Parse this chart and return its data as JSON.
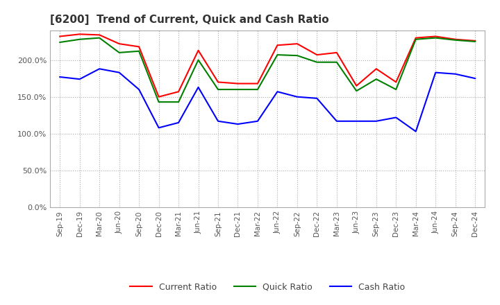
{
  "title": "[6200]  Trend of Current, Quick and Cash Ratio",
  "x_labels": [
    "Sep-19",
    "Dec-19",
    "Mar-20",
    "Jun-20",
    "Sep-20",
    "Dec-20",
    "Mar-21",
    "Jun-21",
    "Sep-21",
    "Dec-21",
    "Mar-22",
    "Jun-22",
    "Sep-22",
    "Dec-22",
    "Mar-23",
    "Jun-23",
    "Sep-23",
    "Dec-23",
    "Mar-24",
    "Jun-24",
    "Sep-24",
    "Dec-24"
  ],
  "current_ratio": [
    232,
    235,
    234,
    222,
    218,
    150,
    157,
    213,
    170,
    168,
    168,
    220,
    222,
    207,
    210,
    165,
    188,
    170,
    230,
    232,
    228,
    226
  ],
  "quick_ratio": [
    224,
    228,
    230,
    210,
    212,
    143,
    143,
    200,
    160,
    160,
    160,
    207,
    206,
    197,
    197,
    158,
    174,
    160,
    228,
    230,
    227,
    225
  ],
  "cash_ratio": [
    177,
    174,
    188,
    183,
    160,
    108,
    115,
    163,
    117,
    113,
    117,
    157,
    150,
    148,
    117,
    117,
    117,
    122,
    103,
    183,
    181,
    175
  ],
  "current_color": "#FF0000",
  "quick_color": "#008000",
  "cash_color": "#0000FF",
  "ylim": [
    0,
    240
  ],
  "yticks": [
    0,
    50,
    100,
    150,
    200
  ],
  "background_color": "#FFFFFF",
  "grid_color": "#AAAAAA"
}
